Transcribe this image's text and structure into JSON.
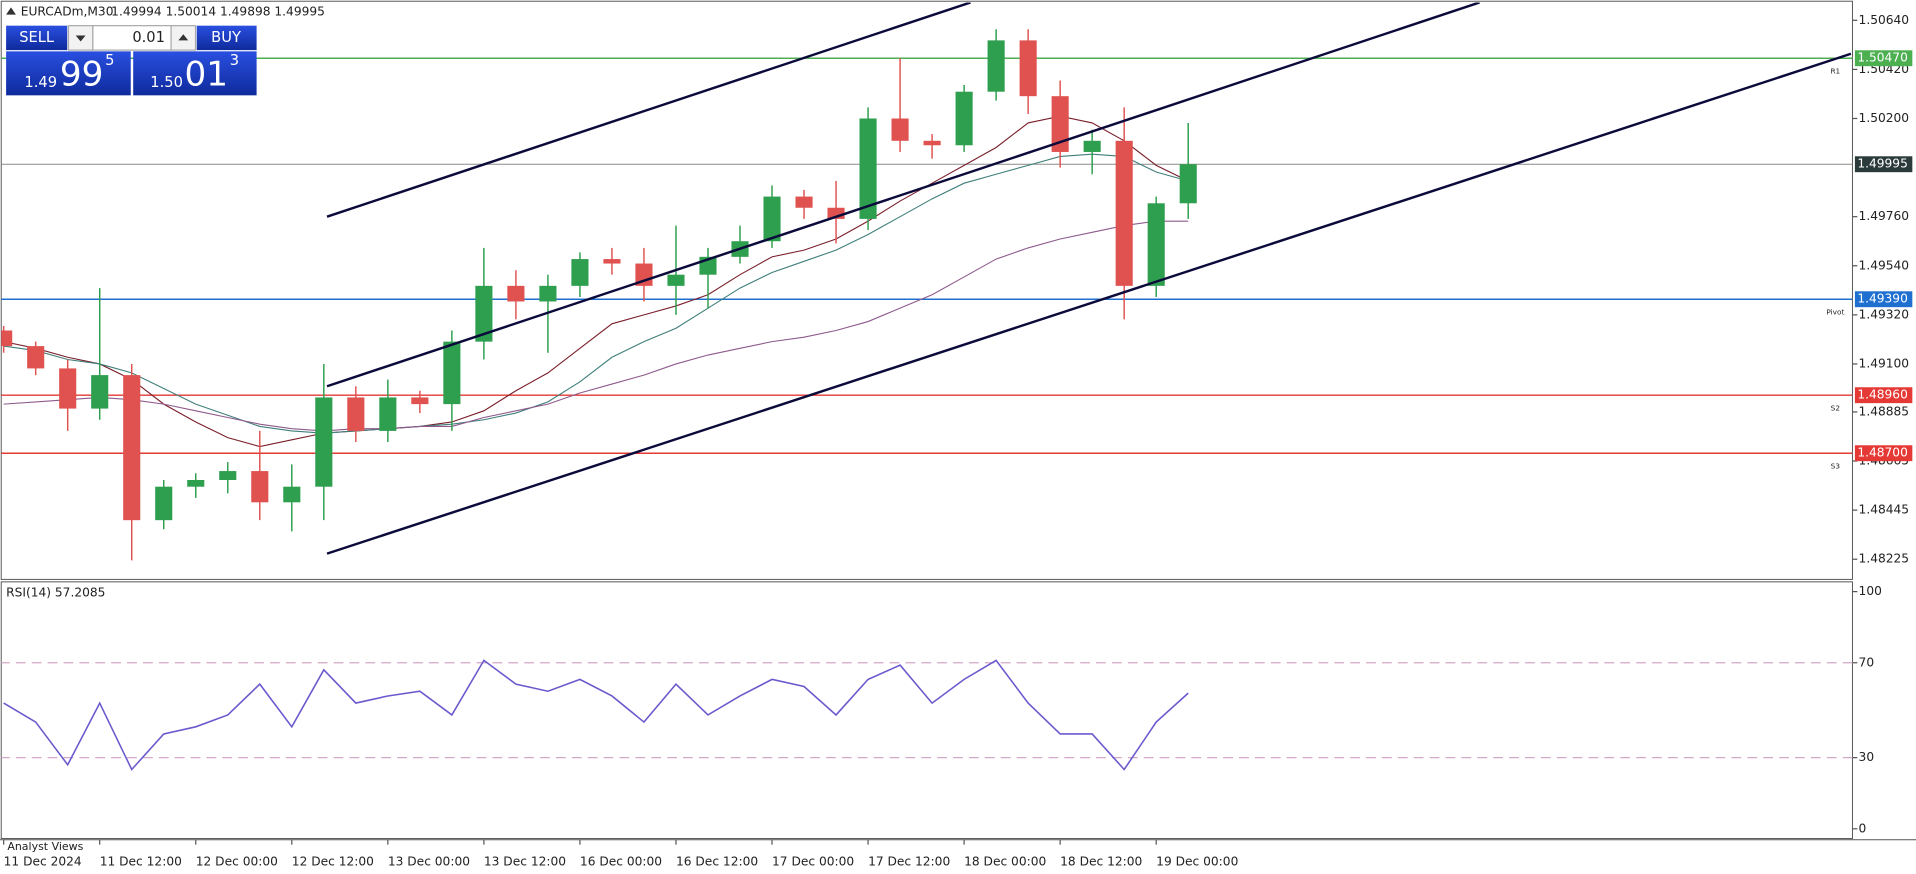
{
  "header": {
    "symbol": "EURCADm,M30",
    "quote": "1.49994 1.50014 1.49898 1.49995"
  },
  "trade_panel": {
    "sell": "SELL",
    "buy": "BUY",
    "volume": "0.01",
    "bid": {
      "small": "1.49",
      "big": "99",
      "sup": "5"
    },
    "ask": {
      "small": "1.50",
      "big": "01",
      "sup": "3"
    }
  },
  "footer": {
    "tab": "Analyst Views"
  },
  "chart_data": [
    {
      "type": "candlestick",
      "categories": [
        "11 Dec 2024",
        null,
        null,
        "11 Dec 12:00",
        null,
        null,
        "12 Dec 00:00",
        null,
        null,
        "12 Dec 12:00",
        null,
        null,
        "13 Dec 00:00",
        null,
        null,
        "13 Dec 12:00",
        null,
        null,
        "16 Dec 00:00",
        null,
        null,
        "16 Dec 12:00",
        null,
        null,
        "17 Dec 00:00",
        null,
        null,
        "17 Dec 12:00",
        null,
        null,
        "18 Dec 00:00",
        null,
        null,
        "18 Dec 12:00",
        null,
        null,
        "19 Dec 00:00",
        null
      ],
      "open": [
        1.4925,
        1.4918,
        1.4908,
        1.489,
        1.4905,
        1.484,
        1.4855,
        1.4858,
        1.4862,
        1.4848,
        1.4855,
        1.4895,
        1.488,
        1.4895,
        1.4892,
        1.492,
        1.4945,
        1.4938,
        1.4945,
        1.4957,
        1.4955,
        1.4945,
        1.495,
        1.4958,
        1.4965,
        1.4985,
        1.498,
        1.4975,
        1.502,
        1.501,
        1.5008,
        1.5032,
        1.5055,
        1.503,
        1.5005,
        1.501,
        1.4945,
        1.4982
      ],
      "high": [
        1.4927,
        1.492,
        1.4912,
        1.4944,
        1.491,
        1.4858,
        1.4861,
        1.4866,
        1.488,
        1.4865,
        1.491,
        1.49,
        1.4903,
        1.4898,
        1.4925,
        1.4962,
        1.4952,
        1.495,
        1.496,
        1.4962,
        1.4962,
        1.4972,
        1.4962,
        1.4972,
        1.499,
        1.4988,
        1.4992,
        1.5025,
        1.5047,
        1.5013,
        1.5035,
        1.506,
        1.506,
        1.5037,
        1.5015,
        1.5025,
        1.4985,
        1.5018
      ],
      "low": [
        1.4915,
        1.4905,
        1.488,
        1.4885,
        1.4822,
        1.4836,
        1.485,
        1.4852,
        1.484,
        1.4835,
        1.484,
        1.4875,
        1.4875,
        1.4888,
        1.488,
        1.4912,
        1.493,
        1.4915,
        1.494,
        1.495,
        1.4938,
        1.4932,
        1.4935,
        1.4955,
        1.4962,
        1.4975,
        1.4964,
        1.497,
        1.5005,
        1.5002,
        1.5005,
        1.5028,
        1.5022,
        1.4998,
        1.4995,
        1.493,
        1.494,
        1.4975
      ],
      "close": [
        1.4918,
        1.4908,
        1.489,
        1.4905,
        1.484,
        1.4855,
        1.4858,
        1.4862,
        1.4848,
        1.4855,
        1.4895,
        1.488,
        1.4895,
        1.4892,
        1.492,
        1.4945,
        1.4938,
        1.4945,
        1.4957,
        1.4955,
        1.4945,
        1.495,
        1.4958,
        1.4965,
        1.4985,
        1.498,
        1.4975,
        1.502,
        1.501,
        1.5008,
        1.5032,
        1.5055,
        1.503,
        1.5005,
        1.501,
        1.4945,
        1.4982,
        1.49995
      ],
      "up_color": "#2e9e4f",
      "down_color": "#e0524f",
      "ylim": [
        1.4814,
        1.5072
      ],
      "yticks": [
        {
          "value": 1.5064,
          "label": "1.50640"
        },
        {
          "value": 1.5042,
          "label": "1.50420"
        },
        {
          "value": 1.502,
          "label": "1.50200"
        },
        {
          "value": 1.4976,
          "label": "1.49760"
        },
        {
          "value": 1.4954,
          "label": "1.49540"
        },
        {
          "value": 1.4932,
          "label": "1.49320"
        },
        {
          "value": 1.491,
          "label": "1.49100"
        },
        {
          "value": 1.48885,
          "label": "1.48885"
        },
        {
          "value": 1.48665,
          "label": "1.48665"
        },
        {
          "value": 1.48445,
          "label": "1.48445"
        },
        {
          "value": 1.48225,
          "label": "1.48225"
        }
      ],
      "moving_averages": [
        {
          "color": "#7a1f2b",
          "values": [
            1.492,
            1.4917,
            1.4913,
            1.491,
            1.4903,
            1.4892,
            1.4884,
            1.4877,
            1.4873,
            1.4876,
            1.4879,
            1.488,
            1.4881,
            1.4882,
            1.4884,
            1.4889,
            1.4898,
            1.4906,
            1.4917,
            1.4928,
            1.4932,
            1.4936,
            1.4941,
            1.495,
            1.4958,
            1.4961,
            1.4966,
            1.4974,
            1.4983,
            1.4991,
            1.4999,
            1.5007,
            1.5018,
            1.5021,
            1.5018,
            1.501,
            1.4999,
            1.4992
          ]
        },
        {
          "color": "#3f7f7a",
          "values": [
            1.4918,
            1.4916,
            1.4912,
            1.491,
            1.4906,
            1.4899,
            1.4892,
            1.4887,
            1.4882,
            1.488,
            1.4879,
            1.488,
            1.4881,
            1.4882,
            1.4883,
            1.4885,
            1.4888,
            1.4893,
            1.4902,
            1.4913,
            1.492,
            1.4926,
            1.4935,
            1.4944,
            1.4951,
            1.4956,
            1.4961,
            1.4968,
            1.4976,
            1.4984,
            1.4991,
            1.4995,
            1.4999,
            1.5003,
            1.5004,
            1.5003,
            1.4996,
            1.4992
          ]
        },
        {
          "color": "#8e5a8c",
          "values": [
            1.4892,
            1.4893,
            1.4894,
            1.4895,
            1.4894,
            1.4892,
            1.4889,
            1.4886,
            1.4883,
            1.4881,
            1.488,
            1.4881,
            1.4881,
            1.4882,
            1.4882,
            1.4886,
            1.4889,
            1.4892,
            1.4897,
            1.4901,
            1.4905,
            1.491,
            1.4914,
            1.4917,
            1.492,
            1.4922,
            1.4925,
            1.4929,
            1.4935,
            1.4941,
            1.4949,
            1.4957,
            1.4962,
            1.4966,
            1.4969,
            1.4972,
            1.4974,
            1.4974
          ]
        }
      ],
      "levels": [
        {
          "name": "R1",
          "value": 1.5047,
          "label": "1.50470",
          "color": "#4caf50"
        },
        {
          "name": "Pivot",
          "value": 1.4939,
          "label": "1.49390",
          "color": "#1e6fd0"
        },
        {
          "name": "S2",
          "value": 1.4896,
          "label": "1.48960",
          "color": "#e53935"
        },
        {
          "name": "S3",
          "value": 1.487,
          "label": "1.48700",
          "color": "#e53935"
        }
      ],
      "current_price": {
        "value": 1.49995,
        "label": "1.49995",
        "color": "#8a8a8a"
      },
      "trendlines": [
        {
          "x": [
            10.1,
            30.2
          ],
          "y": [
            1.4976,
            1.5072
          ],
          "color": "#0b0b3b"
        },
        {
          "x": [
            10.1,
            46.1
          ],
          "y": [
            1.49,
            1.5072
          ],
          "color": "#0b0b3b"
        },
        {
          "x": [
            10.1,
            57.7
          ],
          "y": [
            1.4825,
            1.5049
          ],
          "color": "#0b0b3b"
        }
      ]
    },
    {
      "type": "line",
      "title": "RSI(14) 57.2085",
      "color": "#6a5acd",
      "values": [
        53,
        45,
        27,
        53,
        25,
        40,
        43,
        48,
        61,
        43,
        67,
        53,
        56,
        58,
        48,
        71,
        61,
        58,
        63,
        56,
        45,
        61,
        48,
        56,
        63,
        60,
        48,
        63,
        69,
        53,
        63,
        71,
        53,
        40,
        40,
        25,
        45,
        57.2085
      ],
      "ylim": [
        -3.6,
        103.6
      ],
      "yticks": [
        0,
        30,
        70,
        100
      ],
      "levels": [
        30,
        70
      ]
    }
  ]
}
